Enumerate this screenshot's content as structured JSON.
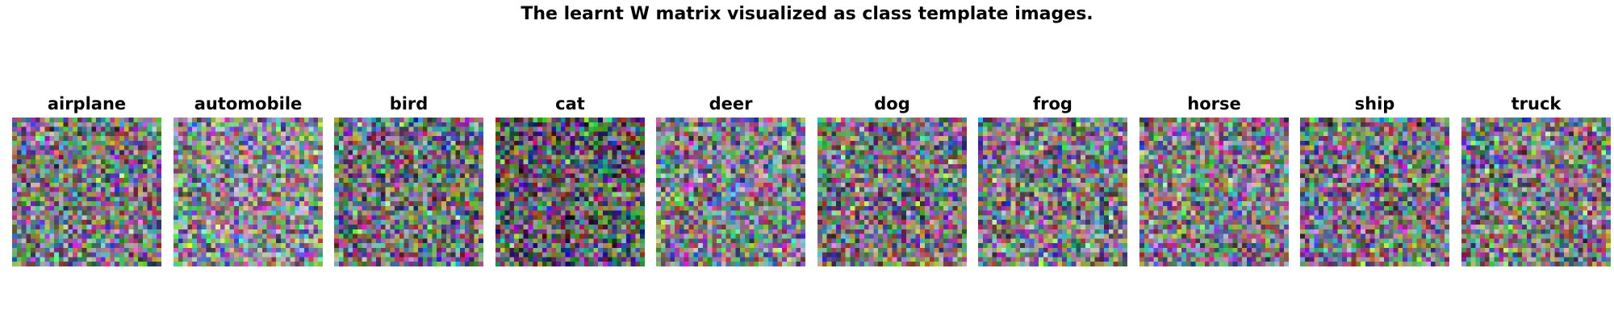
{
  "figure": {
    "title": "The learnt W matrix visualized as class template images."
  },
  "chart_data": {
    "type": "heatmap",
    "title": "The learnt W matrix visualized as class template images.",
    "grid": false,
    "axes_visible": false,
    "image_shape": [
      32,
      32,
      3
    ],
    "colormap": "rgb",
    "panels": [
      {
        "label": "airplane"
      },
      {
        "label": "automobile"
      },
      {
        "label": "bird"
      },
      {
        "label": "cat"
      },
      {
        "label": "deer"
      },
      {
        "label": "dog"
      },
      {
        "label": "frog"
      },
      {
        "label": "horse"
      },
      {
        "label": "ship"
      },
      {
        "label": "truck"
      }
    ]
  }
}
